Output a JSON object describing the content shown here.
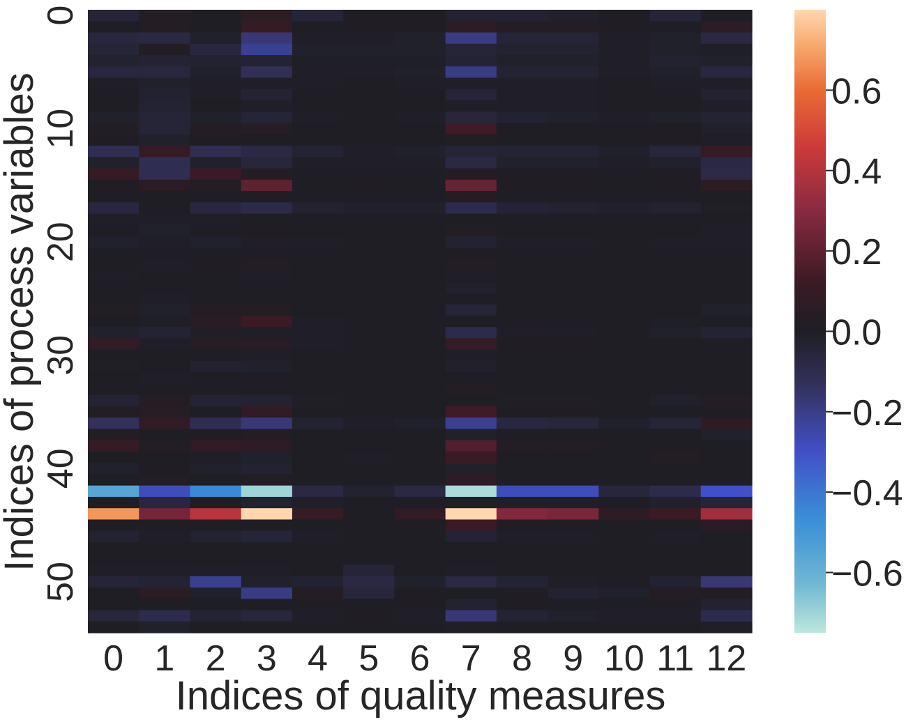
{
  "chart_data": {
    "type": "heatmap",
    "title": "",
    "xlabel": "Indices of quality measures",
    "ylabel": "Indices of process variables",
    "x_categories": [
      0,
      1,
      2,
      3,
      4,
      5,
      6,
      7,
      8,
      9,
      10,
      11,
      12
    ],
    "y_categories": [
      0,
      1,
      2,
      3,
      4,
      5,
      6,
      7,
      8,
      9,
      10,
      11,
      12,
      13,
      14,
      15,
      16,
      17,
      18,
      19,
      20,
      21,
      22,
      23,
      24,
      25,
      26,
      27,
      28,
      29,
      30,
      31,
      32,
      33,
      34,
      35,
      36,
      37,
      38,
      39,
      40,
      41,
      42,
      43,
      44,
      45,
      46,
      47,
      48,
      49,
      50,
      51,
      52,
      53,
      54
    ],
    "y_tick_labels_shown": [
      0,
      10,
      20,
      30,
      40,
      50
    ],
    "colormap": "icefire",
    "vmin": -0.75,
    "vmax": 0.8,
    "center": 0,
    "colorbar_ticks": [
      0.6,
      0.4,
      0.2,
      0.0,
      -0.2,
      -0.4,
      -0.6
    ],
    "colorbar_tick_labels": [
      "0.6",
      "0.4",
      "0.2",
      "0.0",
      "−0.2",
      "−0.4",
      "−0.6"
    ],
    "values": [
      [
        -0.05,
        0.02,
        0.01,
        0.06,
        -0.05,
        0.01,
        0.01,
        -0.03,
        -0.03,
        -0.02,
        0.0,
        -0.05,
        0.0
      ],
      [
        0.0,
        0.03,
        0.0,
        0.1,
        0.0,
        0.01,
        0.01,
        0.06,
        0.03,
        0.03,
        0.01,
        0.0,
        0.06
      ],
      [
        -0.07,
        -0.08,
        -0.02,
        -0.18,
        -0.01,
        -0.01,
        -0.02,
        -0.2,
        -0.05,
        -0.05,
        -0.01,
        -0.02,
        -0.08
      ],
      [
        -0.05,
        0.02,
        -0.07,
        -0.22,
        -0.02,
        -0.02,
        -0.02,
        -0.05,
        -0.03,
        -0.03,
        -0.01,
        -0.02,
        -0.01
      ],
      [
        -0.03,
        -0.04,
        -0.03,
        -0.04,
        -0.01,
        -0.01,
        -0.01,
        -0.04,
        -0.02,
        -0.02,
        -0.01,
        -0.03,
        -0.02
      ],
      [
        -0.07,
        -0.07,
        -0.02,
        -0.13,
        -0.01,
        -0.01,
        -0.02,
        -0.2,
        -0.04,
        -0.04,
        -0.01,
        -0.02,
        -0.07
      ],
      [
        -0.01,
        -0.02,
        -0.01,
        -0.01,
        -0.01,
        0.0,
        -0.01,
        -0.01,
        -0.01,
        -0.01,
        0.0,
        -0.01,
        -0.01
      ],
      [
        0.0,
        -0.03,
        -0.01,
        -0.04,
        0.0,
        0.0,
        0.0,
        -0.05,
        -0.01,
        -0.01,
        0.0,
        0.0,
        -0.03
      ],
      [
        0.0,
        -0.04,
        0.0,
        -0.01,
        0.0,
        0.0,
        0.0,
        -0.01,
        -0.01,
        -0.01,
        0.0,
        0.0,
        -0.01
      ],
      [
        -0.02,
        -0.05,
        -0.02,
        -0.05,
        -0.01,
        0.0,
        -0.01,
        -0.06,
        -0.03,
        -0.02,
        -0.01,
        -0.02,
        -0.04
      ],
      [
        0.02,
        -0.05,
        0.03,
        0.04,
        0.0,
        0.01,
        0.0,
        0.13,
        0.01,
        0.01,
        0.01,
        0.01,
        -0.02
      ],
      [
        0.01,
        -0.02,
        0.01,
        0.0,
        0.0,
        0.0,
        0.0,
        0.02,
        0.0,
        0.0,
        0.0,
        0.01,
        -0.01
      ],
      [
        -0.12,
        0.1,
        -0.12,
        -0.08,
        -0.04,
        -0.01,
        -0.02,
        -0.05,
        -0.04,
        -0.04,
        -0.02,
        -0.06,
        0.1
      ],
      [
        -0.02,
        -0.12,
        -0.02,
        -0.06,
        -0.01,
        -0.01,
        -0.01,
        -0.08,
        -0.02,
        -0.02,
        -0.01,
        -0.02,
        -0.08
      ],
      [
        0.1,
        -0.12,
        0.12,
        0.03,
        0.0,
        0.0,
        0.0,
        0.03,
        0.01,
        0.01,
        0.0,
        0.01,
        -0.09
      ],
      [
        0.01,
        0.05,
        0.02,
        0.2,
        0.0,
        0.01,
        0.0,
        0.22,
        0.01,
        0.01,
        0.0,
        0.01,
        0.06
      ],
      [
        0.01,
        0.0,
        0.01,
        0.01,
        0.0,
        0.0,
        0.0,
        0.03,
        0.0,
        0.0,
        0.0,
        0.0,
        0.0
      ],
      [
        -0.07,
        0.0,
        -0.07,
        -0.09,
        -0.03,
        -0.02,
        -0.02,
        -0.1,
        -0.04,
        -0.03,
        -0.02,
        -0.03,
        -0.01
      ],
      [
        -0.01,
        -0.01,
        -0.01,
        0.0,
        0.0,
        0.0,
        0.0,
        0.0,
        0.0,
        0.0,
        0.0,
        0.0,
        0.0
      ],
      [
        0.01,
        -0.02,
        0.01,
        0.01,
        0.0,
        0.0,
        0.0,
        0.02,
        0.0,
        0.0,
        0.0,
        0.0,
        -0.01
      ],
      [
        -0.02,
        -0.01,
        -0.02,
        -0.01,
        -0.01,
        0.0,
        0.0,
        -0.03,
        -0.01,
        -0.01,
        0.0,
        -0.01,
        -0.01
      ],
      [
        0.0,
        0.0,
        0.0,
        0.01,
        0.0,
        0.0,
        0.0,
        0.01,
        0.0,
        0.0,
        0.0,
        0.0,
        0.0
      ],
      [
        0.0,
        -0.01,
        0.01,
        0.02,
        0.0,
        0.0,
        0.0,
        0.02,
        0.0,
        0.0,
        0.0,
        0.0,
        0.0
      ],
      [
        -0.01,
        0.0,
        0.0,
        -0.01,
        0.0,
        0.0,
        0.0,
        -0.01,
        0.0,
        0.0,
        0.0,
        0.0,
        0.0
      ],
      [
        0.0,
        0.0,
        0.0,
        0.0,
        0.0,
        0.0,
        0.0,
        -0.02,
        0.0,
        0.0,
        0.0,
        0.0,
        0.0
      ],
      [
        0.0,
        -0.01,
        0.0,
        0.0,
        0.0,
        0.0,
        0.0,
        0.0,
        0.0,
        0.0,
        0.0,
        0.0,
        0.0
      ],
      [
        0.02,
        -0.02,
        0.03,
        0.02,
        0.0,
        0.0,
        0.0,
        -0.05,
        0.0,
        0.0,
        0.0,
        0.0,
        -0.02
      ],
      [
        0.0,
        -0.01,
        0.05,
        0.12,
        -0.01,
        0.0,
        0.0,
        0.0,
        0.01,
        0.0,
        0.0,
        -0.01,
        0.0
      ],
      [
        -0.02,
        -0.04,
        -0.01,
        -0.01,
        -0.01,
        0.0,
        0.0,
        -0.1,
        -0.01,
        -0.01,
        0.0,
        -0.02,
        -0.04
      ],
      [
        0.08,
        -0.01,
        0.04,
        0.05,
        -0.01,
        0.0,
        0.0,
        0.1,
        0.01,
        0.01,
        0.0,
        0.0,
        0.0
      ],
      [
        0.0,
        0.0,
        0.0,
        -0.01,
        0.0,
        0.0,
        0.0,
        -0.01,
        0.0,
        0.0,
        0.0,
        0.0,
        0.0
      ],
      [
        -0.01,
        0.0,
        -0.03,
        -0.02,
        0.0,
        0.0,
        0.0,
        -0.02,
        0.0,
        0.0,
        0.0,
        0.0,
        0.0
      ],
      [
        0.0,
        -0.01,
        0.0,
        0.01,
        0.0,
        0.0,
        0.0,
        0.0,
        0.0,
        0.0,
        0.0,
        0.0,
        0.0
      ],
      [
        0.01,
        0.0,
        0.0,
        0.01,
        0.0,
        0.0,
        0.0,
        0.03,
        0.0,
        0.0,
        0.0,
        0.0,
        0.0
      ],
      [
        -0.04,
        0.03,
        -0.04,
        -0.03,
        -0.01,
        0.0,
        0.0,
        0.0,
        -0.01,
        -0.01,
        0.0,
        -0.02,
        0.03
      ],
      [
        0.02,
        0.04,
        0.0,
        0.08,
        0.0,
        0.0,
        0.0,
        0.13,
        0.01,
        0.01,
        0.0,
        0.0,
        0.01
      ],
      [
        -0.14,
        0.08,
        -0.12,
        -0.18,
        -0.03,
        -0.01,
        -0.02,
        -0.22,
        -0.07,
        -0.06,
        -0.02,
        -0.05,
        0.06
      ],
      [
        0.02,
        0.0,
        0.01,
        0.02,
        0.0,
        0.0,
        0.0,
        -0.02,
        0.0,
        0.0,
        0.0,
        0.0,
        -0.02
      ],
      [
        0.1,
        0.02,
        0.08,
        0.07,
        0.0,
        0.0,
        0.0,
        0.17,
        0.02,
        0.02,
        0.01,
        0.01,
        0.0
      ],
      [
        0.0,
        0.0,
        -0.01,
        -0.02,
        0.0,
        -0.01,
        0.0,
        0.12,
        0.0,
        0.0,
        0.0,
        0.02,
        0.0
      ],
      [
        -0.02,
        0.01,
        -0.02,
        -0.03,
        0.0,
        0.0,
        0.0,
        -0.02,
        0.0,
        0.0,
        0.0,
        0.0,
        0.0
      ],
      [
        0.0,
        0.02,
        0.0,
        0.02,
        0.0,
        0.0,
        0.0,
        0.06,
        0.0,
        0.0,
        0.0,
        0.0,
        0.0
      ],
      [
        -0.55,
        -0.28,
        -0.45,
        -0.7,
        -0.08,
        -0.03,
        -0.08,
        -0.72,
        -0.28,
        -0.28,
        -0.06,
        -0.1,
        -0.3
      ],
      [
        0.0,
        -0.07,
        0.01,
        -0.03,
        -0.01,
        0.0,
        0.0,
        -0.01,
        -0.01,
        -0.01,
        0.0,
        -0.02,
        -0.05
      ],
      [
        0.68,
        0.25,
        0.4,
        0.8,
        0.1,
        0.0,
        0.08,
        0.8,
        0.28,
        0.26,
        0.06,
        0.12,
        0.35
      ],
      [
        0.01,
        0.01,
        0.01,
        0.01,
        0.0,
        0.0,
        0.0,
        0.12,
        0.01,
        0.01,
        0.0,
        0.01,
        0.05
      ],
      [
        -0.03,
        -0.01,
        -0.03,
        -0.05,
        -0.01,
        0.0,
        0.0,
        -0.04,
        -0.01,
        -0.01,
        0.0,
        -0.01,
        0.0
      ],
      [
        0.0,
        0.0,
        0.0,
        0.0,
        0.0,
        0.0,
        0.0,
        0.0,
        0.0,
        0.0,
        0.0,
        0.0,
        0.0
      ],
      [
        0.0,
        0.0,
        0.0,
        0.0,
        0.0,
        0.0,
        0.0,
        0.0,
        0.0,
        0.0,
        0.0,
        0.0,
        0.0
      ],
      [
        -0.01,
        -0.01,
        -0.01,
        -0.01,
        0.0,
        -0.05,
        0.0,
        -0.01,
        0.0,
        0.0,
        0.0,
        0.0,
        0.0
      ],
      [
        -0.05,
        -0.04,
        -0.22,
        -0.02,
        -0.03,
        -0.08,
        -0.02,
        -0.08,
        -0.04,
        -0.01,
        0.0,
        -0.03,
        -0.18
      ],
      [
        0.0,
        0.06,
        -0.02,
        -0.2,
        0.03,
        -0.06,
        0.01,
        0.0,
        0.01,
        -0.03,
        -0.02,
        0.03,
        0.02
      ],
      [
        0.0,
        0.0,
        0.0,
        0.0,
        0.0,
        0.0,
        0.0,
        -0.03,
        0.0,
        0.0,
        0.0,
        0.0,
        -0.03
      ],
      [
        -0.06,
        -0.1,
        -0.04,
        -0.06,
        -0.01,
        0.01,
        -0.01,
        -0.18,
        -0.04,
        -0.02,
        -0.01,
        -0.01,
        -0.1
      ],
      [
        0.0,
        -0.02,
        0.0,
        0.0,
        0.0,
        0.0,
        0.0,
        -0.01,
        0.0,
        0.0,
        0.0,
        0.0,
        -0.01
      ]
    ]
  }
}
